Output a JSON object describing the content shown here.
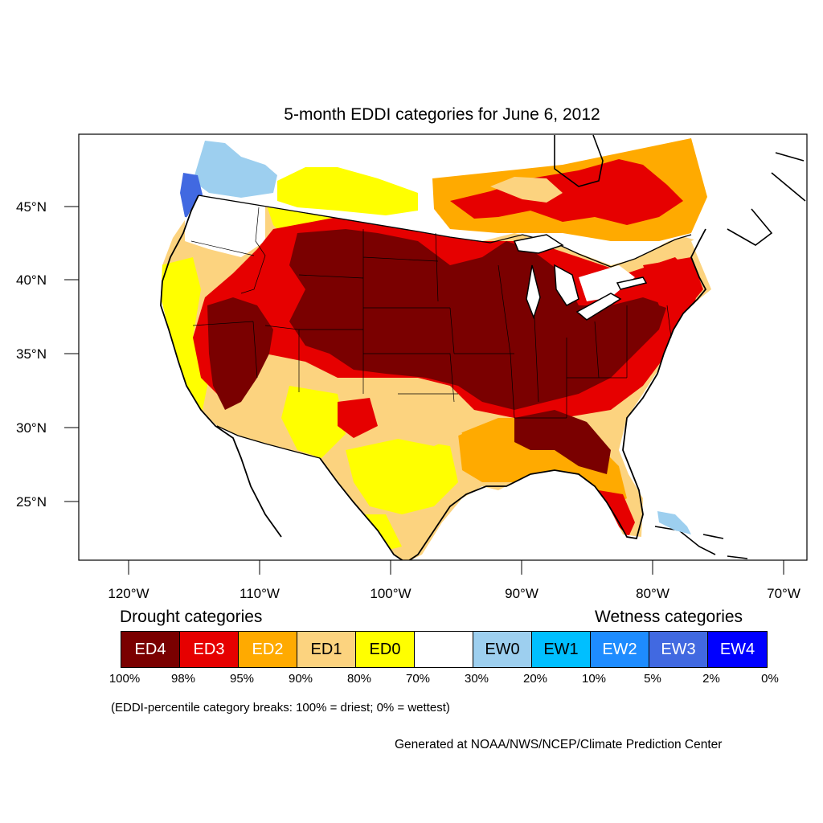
{
  "title": "5-month EDDI categories for June 6, 2012",
  "axes": {
    "lat_labels": [
      "45°N",
      "40°N",
      "35°N",
      "30°N",
      "25°N"
    ],
    "lon_labels": [
      "120°W",
      "110°W",
      "100°W",
      "90°W",
      "80°W",
      "70°W"
    ]
  },
  "legend": {
    "drought_heading": "Drought categories",
    "wetness_heading": "Wetness categories",
    "categories": [
      {
        "label": "ED4",
        "color": "#7a0000",
        "text_color": "#ffffff"
      },
      {
        "label": "ED3",
        "color": "#e60000",
        "text_color": "#ffffff"
      },
      {
        "label": "ED2",
        "color": "#ffaa00",
        "text_color": "#ffffff"
      },
      {
        "label": "ED1",
        "color": "#fcd37f",
        "text_color": "#000000"
      },
      {
        "label": "ED0",
        "color": "#ffff00",
        "text_color": "#000000"
      },
      {
        "label": "",
        "color": "#ffffff",
        "text_color": "#000000"
      },
      {
        "label": "EW0",
        "color": "#9dcfef",
        "text_color": "#000000"
      },
      {
        "label": "EW1",
        "color": "#00bfff",
        "text_color": "#000000"
      },
      {
        "label": "EW2",
        "color": "#1e8cff",
        "text_color": "#ffffff"
      },
      {
        "label": "EW3",
        "color": "#4169e1",
        "text_color": "#ffffff"
      },
      {
        "label": "EW4",
        "color": "#0000ff",
        "text_color": "#ffffff"
      }
    ],
    "breaks": [
      "100%",
      "98%",
      "95%",
      "90%",
      "80%",
      "70%",
      "30%",
      "20%",
      "10%",
      "5%",
      "2%",
      "0%"
    ]
  },
  "note": "(EDDI-percentile category breaks: 100% = driest; 0% = wettest)",
  "credit": "Generated at NOAA/NWS/NCEP/Climate Prediction Center"
}
